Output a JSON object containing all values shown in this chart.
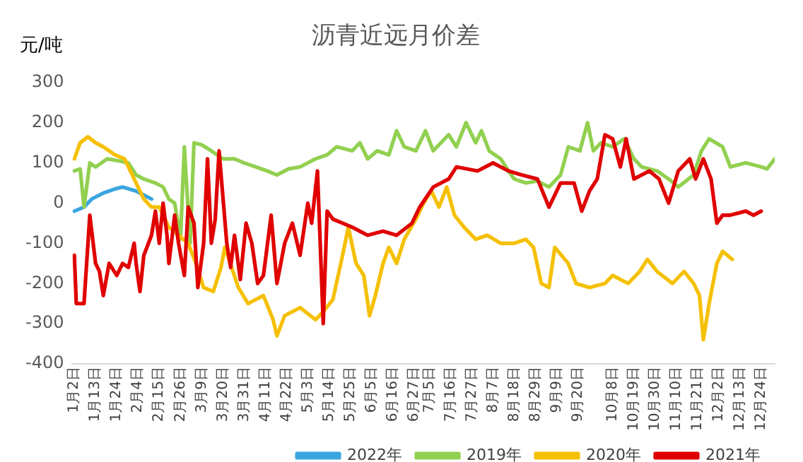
{
  "chart_data": {
    "type": "line",
    "title": "沥青近远月价差",
    "ylabel": "元/吨",
    "xlim": [
      "--01-01",
      "--12-31"
    ],
    "xticks": [
      {
        "value": "--01-02",
        "label": "1月2日"
      },
      {
        "value": "--01-13",
        "label": "1月13日"
      },
      {
        "value": "--01-24",
        "label": "1月24日"
      },
      {
        "value": "--02-04",
        "label": "2月4日"
      },
      {
        "value": "--02-15",
        "label": "2月15日"
      },
      {
        "value": "--02-26",
        "label": "2月26日"
      },
      {
        "value": "--03-09",
        "label": "3月9日"
      },
      {
        "value": "--03-20",
        "label": "3月20日"
      },
      {
        "value": "--03-31",
        "label": "3月31日"
      },
      {
        "value": "--04-11",
        "label": "4月11日"
      },
      {
        "value": "--04-22",
        "label": "4月22日"
      },
      {
        "value": "--05-03",
        "label": "5月3日"
      },
      {
        "value": "--05-14",
        "label": "5月14日"
      },
      {
        "value": "--05-25",
        "label": "5月25日"
      },
      {
        "value": "--06-05",
        "label": "6月5日"
      },
      {
        "value": "--06-16",
        "label": "6月16日"
      },
      {
        "value": "--06-27",
        "label": "6月27日"
      },
      {
        "value": "--07-05",
        "label": "7月5日"
      },
      {
        "value": "--07-16",
        "label": "7月16日"
      },
      {
        "value": "--07-27",
        "label": "7月27日"
      },
      {
        "value": "--08-07",
        "label": "8月7日"
      },
      {
        "value": "--08-18",
        "label": "8月18日"
      },
      {
        "value": "--08-29",
        "label": "8月29日"
      },
      {
        "value": "--09-09",
        "label": "9月9日"
      },
      {
        "value": "--09-20",
        "label": "9月20日"
      },
      {
        "value": "--10-08",
        "label": "10月8日"
      },
      {
        "value": "--10-19",
        "label": "10月19日"
      },
      {
        "value": "--10-30",
        "label": "10月30日"
      },
      {
        "value": "--11-10",
        "label": "11月10日"
      },
      {
        "value": "--11-21",
        "label": "11月21日"
      },
      {
        "value": "--12-02",
        "label": "12月2日"
      },
      {
        "value": "--12-13",
        "label": "12月13日"
      },
      {
        "value": "--12-24",
        "label": "12月24日"
      }
    ],
    "ylim": [
      -400,
      300
    ],
    "yticks": [
      -400,
      -300,
      -200,
      -100,
      0,
      100,
      200,
      300
    ],
    "grid": false,
    "legend": "bottom right",
    "marker": "none",
    "line_style": "solid",
    "series": [
      {
        "name": "2022年",
        "color": "#3aa6e0",
        "x": [
          "--01-02",
          "--01-07",
          "--01-11",
          "--01-17",
          "--01-23",
          "--01-27",
          "--02-03",
          "--02-07",
          "--02-11"
        ],
        "values": [
          -20,
          -10,
          10,
          25,
          35,
          40,
          30,
          20,
          10
        ]
      },
      {
        "name": "2019年",
        "color": "#92d050",
        "x": [
          "--01-02",
          "--01-05",
          "--01-07",
          "--01-10",
          "--01-13",
          "--01-19",
          "--01-25",
          "--01-30",
          "--02-03",
          "--02-07",
          "--02-13",
          "--02-17",
          "--02-20",
          "--02-23",
          "--02-26",
          "--02-28",
          "--03-03",
          "--03-05",
          "--03-09",
          "--03-14",
          "--03-20",
          "--03-26",
          "--03-31",
          "--04-06",
          "--04-12",
          "--04-17",
          "--04-23",
          "--04-29",
          "--05-07",
          "--05-13",
          "--05-18",
          "--05-26",
          "--05-30",
          "--06-03",
          "--06-08",
          "--06-14",
          "--06-18",
          "--06-22",
          "--06-28",
          "--07-03",
          "--07-07",
          "--07-15",
          "--07-19",
          "--07-24",
          "--07-29",
          "--08-01",
          "--08-05",
          "--08-11",
          "--08-15",
          "--08-18",
          "--08-24",
          "--08-30",
          "--09-05",
          "--09-11",
          "--09-15",
          "--09-21",
          "--09-25",
          "--09-28",
          "--10-02",
          "--10-08",
          "--10-14",
          "--10-19",
          "--10-23",
          "--10-31",
          "--11-06",
          "--11-11",
          "--11-19",
          "--11-23",
          "--11-27",
          "--12-04",
          "--12-08",
          "--12-16",
          "--12-24",
          "--12-27",
          "--12-31"
        ],
        "values": [
          80,
          85,
          -10,
          100,
          90,
          110,
          105,
          100,
          70,
          60,
          50,
          40,
          10,
          0,
          -90,
          140,
          -100,
          150,
          145,
          130,
          110,
          110,
          100,
          90,
          80,
          70,
          85,
          90,
          110,
          120,
          140,
          130,
          150,
          110,
          130,
          120,
          180,
          140,
          130,
          180,
          130,
          170,
          140,
          200,
          150,
          180,
          130,
          110,
          80,
          60,
          50,
          55,
          40,
          70,
          140,
          130,
          200,
          130,
          150,
          140,
          160,
          110,
          90,
          80,
          60,
          40,
          70,
          130,
          160,
          140,
          90,
          100,
          90,
          85,
          110
        ]
      },
      {
        "name": "2020年",
        "color": "#f5c000",
        "x": [
          "--01-02",
          "--01-05",
          "--01-09",
          "--01-13",
          "--01-17",
          "--01-23",
          "--01-28",
          "--02-02",
          "--02-07",
          "--02-11",
          "--02-15",
          "--02-20",
          "--02-25",
          "--03-02",
          "--03-06",
          "--03-10",
          "--03-15",
          "--03-19",
          "--03-21",
          "--03-28",
          "--04-02",
          "--04-10",
          "--04-15",
          "--04-17",
          "--04-21",
          "--04-29",
          "--05-07",
          "--05-11",
          "--05-16",
          "--05-21",
          "--05-24",
          "--05-28",
          "--06-01",
          "--06-04",
          "--06-07",
          "--06-11",
          "--06-14",
          "--06-18",
          "--06-22",
          "--06-28",
          "--07-02",
          "--07-06",
          "--07-10",
          "--07-14",
          "--07-18",
          "--07-23",
          "--07-29",
          "--08-04",
          "--08-11",
          "--08-18",
          "--08-24",
          "--08-28",
          "--09-01",
          "--09-05",
          "--09-08",
          "--09-15",
          "--09-19",
          "--09-26",
          "--10-04",
          "--10-08",
          "--10-16",
          "--10-22",
          "--10-26",
          "--10-31",
          "--11-08",
          "--11-14",
          "--11-19",
          "--11-22",
          "--11-24",
          "--11-27",
          "--12-01",
          "--12-04",
          "--12-09"
        ],
        "values": [
          110,
          150,
          165,
          150,
          140,
          120,
          110,
          60,
          10,
          -10,
          -10,
          -60,
          -80,
          -100,
          -150,
          -210,
          -220,
          -160,
          -110,
          -210,
          -250,
          -230,
          -290,
          -330,
          -280,
          -260,
          -290,
          -270,
          -240,
          -130,
          -60,
          -150,
          -180,
          -280,
          -230,
          -150,
          -110,
          -150,
          -90,
          -40,
          0,
          30,
          -10,
          40,
          -30,
          -60,
          -90,
          -80,
          -100,
          -100,
          -90,
          -110,
          -200,
          -210,
          -110,
          -150,
          -200,
          -210,
          -200,
          -180,
          -200,
          -170,
          -140,
          -170,
          -200,
          -170,
          -200,
          -230,
          -340,
          -250,
          -150,
          -120,
          -140
        ]
      },
      {
        "name": "2021年",
        "color": "#e00000",
        "x": [
          "--01-02",
          "--01-03",
          "--01-07",
          "--01-10",
          "--01-13",
          "--01-15",
          "--01-17",
          "--01-20",
          "--01-24",
          "--01-27",
          "--01-30",
          "--02-02",
          "--02-03",
          "--02-05",
          "--02-07",
          "--02-11",
          "--02-13",
          "--02-15",
          "--02-17",
          "--02-19",
          "--02-20",
          "--02-23",
          "--02-25",
          "--02-28",
          "--03-02",
          "--03-05",
          "--03-07",
          "--03-10",
          "--03-12",
          "--03-14",
          "--03-16",
          "--03-18",
          "--03-22",
          "--03-24",
          "--03-26",
          "--03-29",
          "--04-01",
          "--04-04",
          "--04-07",
          "--04-10",
          "--04-14",
          "--04-17",
          "--04-21",
          "--04-25",
          "--04-29",
          "--05-03",
          "--05-05",
          "--05-08",
          "--05-11",
          "--05-13",
          "--05-16",
          "--05-21",
          "--05-26",
          "--06-03",
          "--06-11",
          "--06-18",
          "--06-26",
          "--06-30",
          "--07-07",
          "--07-15",
          "--07-19",
          "--07-30",
          "--08-07",
          "--08-15",
          "--08-22",
          "--08-30",
          "--09-05",
          "--09-11",
          "--09-18",
          "--09-22",
          "--09-26",
          "--09-30",
          "--10-04",
          "--10-08",
          "--10-12",
          "--10-15",
          "--10-19",
          "--10-27",
          "--11-01",
          "--11-06",
          "--11-11",
          "--11-17",
          "--11-20",
          "--11-24",
          "--11-28",
          "--12-01",
          "--12-04",
          "--12-08",
          "--12-16",
          "--12-20",
          "--12-24"
        ],
        "values": [
          -130,
          -250,
          -250,
          -30,
          -150,
          -170,
          -230,
          -150,
          -180,
          -150,
          -160,
          -100,
          -150,
          -220,
          -130,
          -80,
          -20,
          -100,
          0,
          -80,
          -150,
          -30,
          -100,
          -180,
          -10,
          -50,
          -210,
          -100,
          110,
          -100,
          -40,
          130,
          -100,
          -160,
          -80,
          -190,
          -50,
          -100,
          -200,
          -180,
          -30,
          -200,
          -100,
          -50,
          -130,
          0,
          -50,
          80,
          -300,
          -20,
          -40,
          -50,
          -60,
          -80,
          -70,
          -80,
          -50,
          -10,
          40,
          60,
          90,
          80,
          100,
          80,
          70,
          60,
          -10,
          50,
          50,
          -20,
          30,
          60,
          170,
          160,
          90,
          160,
          60,
          80,
          60,
          0,
          80,
          110,
          60,
          110,
          60,
          -50,
          -30,
          -30,
          -20,
          -30,
          -20
        ]
      }
    ]
  }
}
